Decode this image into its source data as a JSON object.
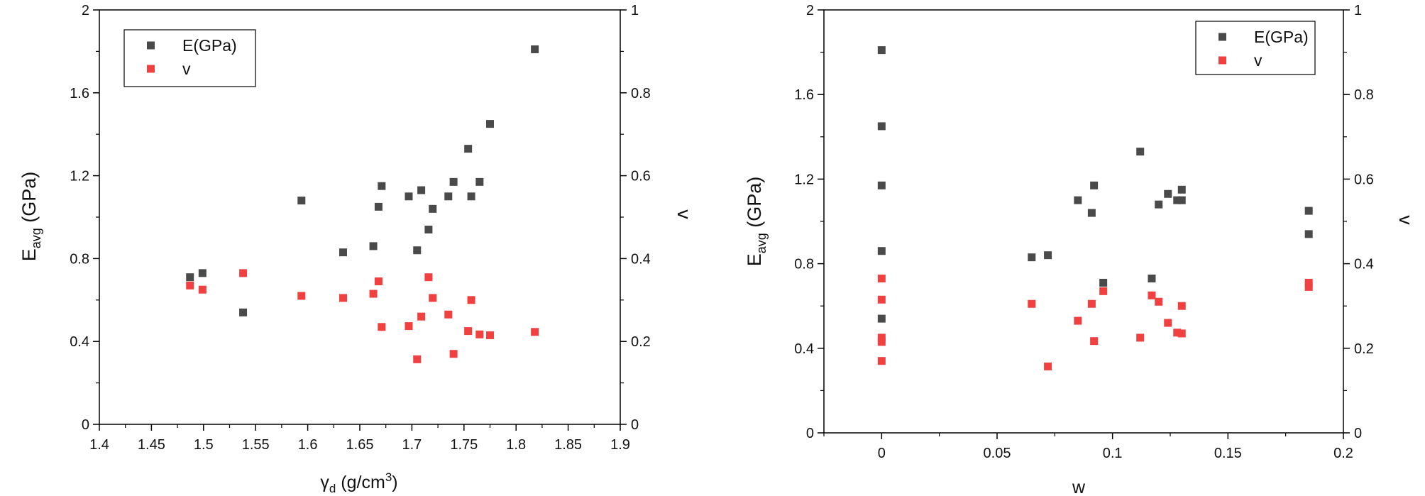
{
  "colors": {
    "E": "#4a4a4a",
    "v": "#f04040",
    "axis": "#000000"
  },
  "chart_data": [
    {
      "type": "scatter",
      "xlabel_main": "γ",
      "xlabel_sub": "d",
      "xlabel_unit": " (g/cm",
      "xlabel_sup": "3",
      "xlabel_close": ")",
      "ylabel_main": "E",
      "ylabel_sub": "avg",
      "ylabel_unit": " (GPa)",
      "y2label": "v",
      "xlim": [
        1.4,
        1.9
      ],
      "ylim": [
        0,
        2
      ],
      "y2lim": [
        0,
        1
      ],
      "xticks": [
        "1.4",
        "1.45",
        "1.5",
        "1.55",
        "1.6",
        "1.65",
        "1.7",
        "1.75",
        "1.8",
        "1.85",
        "1.9"
      ],
      "yticks": [
        "0",
        "0.4",
        "0.8",
        "1.2",
        "1.6",
        "2"
      ],
      "y2ticks": [
        "0",
        "0.2",
        "0.4",
        "0.6",
        "0.8",
        "1"
      ],
      "legend": {
        "position": "top-left",
        "entries": [
          "E(GPa)",
          "v"
        ]
      },
      "series": [
        {
          "name": "E(GPa)",
          "axis": "left",
          "points": [
            [
              1.487,
              0.71
            ],
            [
              1.499,
              0.73
            ],
            [
              1.538,
              0.54
            ],
            [
              1.594,
              1.08
            ],
            [
              1.634,
              0.83
            ],
            [
              1.663,
              0.86
            ],
            [
              1.668,
              1.05
            ],
            [
              1.671,
              1.15
            ],
            [
              1.697,
              1.1
            ],
            [
              1.705,
              0.84
            ],
            [
              1.709,
              1.13
            ],
            [
              1.716,
              0.94
            ],
            [
              1.72,
              1.04
            ],
            [
              1.735,
              1.1
            ],
            [
              1.74,
              1.17
            ],
            [
              1.754,
              1.33
            ],
            [
              1.757,
              1.1
            ],
            [
              1.765,
              1.17
            ],
            [
              1.775,
              1.45
            ],
            [
              1.818,
              1.81
            ]
          ]
        },
        {
          "name": "v",
          "axis": "right",
          "points": [
            [
              1.487,
              0.335
            ],
            [
              1.499,
              0.325
            ],
            [
              1.538,
              0.365
            ],
            [
              1.594,
              0.31
            ],
            [
              1.634,
              0.305
            ],
            [
              1.663,
              0.315
            ],
            [
              1.668,
              0.345
            ],
            [
              1.671,
              0.235
            ],
            [
              1.697,
              0.237
            ],
            [
              1.705,
              0.157
            ],
            [
              1.709,
              0.26
            ],
            [
              1.716,
              0.355
            ],
            [
              1.72,
              0.305
            ],
            [
              1.735,
              0.265
            ],
            [
              1.74,
              0.17
            ],
            [
              1.754,
              0.225
            ],
            [
              1.757,
              0.3
            ],
            [
              1.765,
              0.217
            ],
            [
              1.775,
              0.215
            ],
            [
              1.818,
              0.223
            ]
          ]
        }
      ]
    },
    {
      "type": "scatter",
      "xlabel_main": "w",
      "ylabel_main": "E",
      "ylabel_sub": "avg",
      "ylabel_unit": " (GPa)",
      "y2label": "v",
      "xlim": [
        -0.025,
        0.2
      ],
      "ylim": [
        0,
        2
      ],
      "y2lim": [
        0,
        1
      ],
      "xticks": [
        "0",
        "0.05",
        "0.1",
        "0.15",
        "0.2"
      ],
      "yticks": [
        "0",
        "0.4",
        "0.8",
        "1.2",
        "1.6",
        "2"
      ],
      "y2ticks": [
        "0",
        "0.2",
        "0.4",
        "0.6",
        "0.8",
        "1"
      ],
      "legend": {
        "position": "top-right",
        "entries": [
          "E(GPa)",
          "v"
        ]
      },
      "series": [
        {
          "name": "E(GPa)",
          "axis": "left",
          "points": [
            [
              0,
              1.81
            ],
            [
              0,
              1.45
            ],
            [
              0,
              1.17
            ],
            [
              0,
              0.86
            ],
            [
              0,
              0.54
            ],
            [
              0.065,
              0.83
            ],
            [
              0.072,
              0.84
            ],
            [
              0.085,
              1.1
            ],
            [
              0.091,
              1.04
            ],
            [
              0.092,
              1.17
            ],
            [
              0.096,
              0.71
            ],
            [
              0.112,
              1.33
            ],
            [
              0.117,
              0.73
            ],
            [
              0.12,
              1.08
            ],
            [
              0.124,
              1.13
            ],
            [
              0.128,
              1.1
            ],
            [
              0.13,
              1.1
            ],
            [
              0.13,
              1.15
            ],
            [
              0.185,
              1.05
            ],
            [
              0.185,
              0.94
            ]
          ]
        },
        {
          "name": "v",
          "axis": "right",
          "points": [
            [
              0,
              0.365
            ],
            [
              0,
              0.315
            ],
            [
              0,
              0.225
            ],
            [
              0,
              0.215
            ],
            [
              0,
              0.17
            ],
            [
              0.065,
              0.305
            ],
            [
              0.072,
              0.157
            ],
            [
              0.085,
              0.265
            ],
            [
              0.091,
              0.305
            ],
            [
              0.092,
              0.217
            ],
            [
              0.096,
              0.335
            ],
            [
              0.112,
              0.225
            ],
            [
              0.117,
              0.325
            ],
            [
              0.12,
              0.31
            ],
            [
              0.124,
              0.26
            ],
            [
              0.128,
              0.237
            ],
            [
              0.13,
              0.235
            ],
            [
              0.13,
              0.3
            ],
            [
              0.185,
              0.355
            ],
            [
              0.185,
              0.345
            ]
          ]
        }
      ]
    }
  ]
}
